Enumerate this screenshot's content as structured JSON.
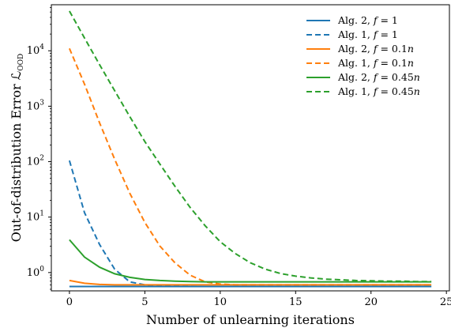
{
  "chart_data": {
    "type": "line",
    "xlabel": "Number of unlearning iterations",
    "ylabel": "Out-of-distribution Error ℒ",
    "ylabel_subscript": "OOD",
    "yscale": "log",
    "xlim": [
      -1.2,
      25.2
    ],
    "ylim_log10": [
      -0.33,
      4.83
    ],
    "x_ticks": [
      0,
      5,
      10,
      15,
      20,
      25
    ],
    "y_ticks": [
      {
        "base": "10",
        "exp": "0",
        "value": 1
      },
      {
        "base": "10",
        "exp": "1",
        "value": 10
      },
      {
        "base": "10",
        "exp": "2",
        "value": 100
      },
      {
        "base": "10",
        "exp": "3",
        "value": 1000
      },
      {
        "base": "10",
        "exp": "4",
        "value": 10000
      }
    ],
    "legend_position": "top-right",
    "series": [
      {
        "name_main": "Alg. 2, ",
        "name_var": "f",
        "name_rest": " = 1",
        "color": "#1f77b4",
        "dash": "solid",
        "x": [
          0,
          1,
          2,
          3,
          4,
          5,
          6,
          7,
          8,
          9,
          10,
          11,
          12,
          13,
          14,
          15,
          16,
          17,
          18,
          19,
          20,
          21,
          22,
          23,
          24
        ],
        "y": [
          0.56,
          0.56,
          0.56,
          0.56,
          0.56,
          0.56,
          0.56,
          0.56,
          0.56,
          0.56,
          0.56,
          0.56,
          0.56,
          0.56,
          0.56,
          0.56,
          0.56,
          0.56,
          0.56,
          0.56,
          0.56,
          0.56,
          0.56,
          0.56,
          0.56
        ]
      },
      {
        "name_main": "Alg. 1, ",
        "name_var": "f",
        "name_rest": " = 1",
        "color": "#1f77b4",
        "dash": "dashed",
        "x": [
          0,
          1,
          2,
          3,
          4,
          5,
          6,
          7,
          8,
          9,
          10,
          11,
          12,
          13,
          14,
          15,
          16,
          17,
          18,
          19,
          20,
          21,
          22,
          23,
          24
        ],
        "y": [
          105,
          12,
          3.2,
          1.15,
          0.68,
          0.6,
          0.58,
          0.57,
          0.565,
          0.56,
          0.56,
          0.56,
          0.56,
          0.56,
          0.56,
          0.56,
          0.56,
          0.56,
          0.56,
          0.56,
          0.56,
          0.56,
          0.56,
          0.56,
          0.56
        ]
      },
      {
        "name_main": "Alg. 2, ",
        "name_var": "f",
        "name_rest": " = 0.1",
        "name_var2": "n",
        "color": "#ff7f0e",
        "dash": "solid",
        "x": [
          0,
          1,
          2,
          3,
          4,
          5,
          6,
          7,
          8,
          9,
          10,
          11,
          12,
          13,
          14,
          15,
          16,
          17,
          18,
          19,
          20,
          21,
          22,
          23,
          24
        ],
        "y": [
          0.72,
          0.64,
          0.61,
          0.6,
          0.6,
          0.6,
          0.6,
          0.6,
          0.6,
          0.6,
          0.6,
          0.6,
          0.6,
          0.6,
          0.6,
          0.6,
          0.6,
          0.6,
          0.6,
          0.6,
          0.6,
          0.6,
          0.6,
          0.6,
          0.6
        ]
      },
      {
        "name_main": "Alg. 1, ",
        "name_var": "f",
        "name_rest": " = 0.1",
        "name_var2": "n",
        "color": "#ff7f0e",
        "dash": "dashed",
        "x": [
          0,
          1,
          2,
          3,
          4,
          5,
          6,
          7,
          8,
          9,
          10,
          11,
          12,
          13,
          14,
          15,
          16,
          17,
          18,
          19,
          20,
          21,
          22,
          23,
          24
        ],
        "y": [
          11000,
          2500,
          500,
          110,
          27,
          8,
          3,
          1.5,
          0.9,
          0.68,
          0.62,
          0.6,
          0.6,
          0.6,
          0.6,
          0.6,
          0.6,
          0.6,
          0.6,
          0.6,
          0.6,
          0.6,
          0.6,
          0.6,
          0.6
        ]
      },
      {
        "name_main": "Alg. 2, ",
        "name_var": "f",
        "name_rest": " = 0.45",
        "name_var2": "n",
        "color": "#2ca02c",
        "dash": "solid",
        "x": [
          0,
          1,
          2,
          3,
          4,
          5,
          6,
          7,
          8,
          9,
          10,
          11,
          12,
          13,
          14,
          15,
          16,
          17,
          18,
          19,
          20,
          21,
          22,
          23,
          24
        ],
        "y": [
          3.9,
          1.9,
          1.25,
          0.95,
          0.82,
          0.75,
          0.72,
          0.7,
          0.69,
          0.68,
          0.68,
          0.68,
          0.68,
          0.68,
          0.68,
          0.68,
          0.68,
          0.68,
          0.68,
          0.68,
          0.68,
          0.68,
          0.68,
          0.68,
          0.68
        ]
      },
      {
        "name_main": "Alg. 1, ",
        "name_var": "f",
        "name_rest": " = 0.45",
        "name_var2": "n",
        "color": "#2ca02c",
        "dash": "dashed",
        "x": [
          0,
          1,
          2,
          3,
          4,
          5,
          6,
          7,
          8,
          9,
          10,
          11,
          12,
          13,
          14,
          15,
          16,
          17,
          18,
          19,
          20,
          21,
          22,
          23,
          24
        ],
        "y": [
          52000,
          17000,
          5600,
          1900,
          650,
          230,
          90,
          36,
          15,
          7,
          3.6,
          2.2,
          1.5,
          1.15,
          0.96,
          0.86,
          0.8,
          0.76,
          0.74,
          0.72,
          0.71,
          0.7,
          0.7,
          0.69,
          0.69
        ]
      }
    ]
  }
}
